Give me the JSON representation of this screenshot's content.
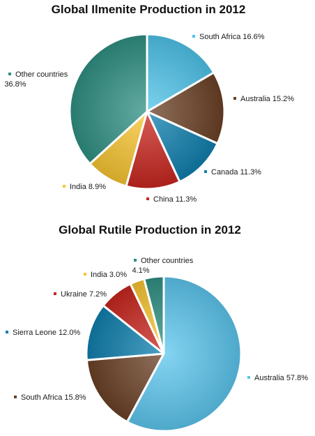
{
  "chart_data": [
    {
      "type": "pie",
      "title": "Global Ilmenite Production in 2012",
      "slices": [
        {
          "label": "South Africa",
          "value": 16.6,
          "text": "South Africa 16.6%",
          "color": "#4fc3ea"
        },
        {
          "label": "Australia",
          "value": 15.2,
          "text": "Australia 15.2%",
          "color": "#6b4126"
        },
        {
          "label": "Canada",
          "value": 11.3,
          "text": "Canada 11.3%",
          "color": "#0f7fae"
        },
        {
          "label": "China",
          "value": 11.3,
          "text": "China 11.3%",
          "color": "#c8261f"
        },
        {
          "label": "India",
          "value": 8.9,
          "text": "India 8.9%",
          "color": "#f7c531"
        },
        {
          "label": "Other countries",
          "value": 36.8,
          "text": "Other countries\n36.8%",
          "color": "#2f8f83"
        }
      ],
      "legend": "none"
    },
    {
      "type": "pie",
      "title": "Global Rutile Production in 2012",
      "slices": [
        {
          "label": "Australia",
          "value": 57.8,
          "text": "Australia 57.8%",
          "color": "#5cc6ee"
        },
        {
          "label": "South Africa",
          "value": 15.8,
          "text": "South Africa 15.8%",
          "color": "#6b4126"
        },
        {
          "label": "Sierra Leone",
          "value": 12.0,
          "text": "Sierra Leone 12.0%",
          "color": "#0f7fae"
        },
        {
          "label": "Ukraine",
          "value": 7.2,
          "text": "Ukraine 7.2%",
          "color": "#c8261f"
        },
        {
          "label": "India",
          "value": 3.0,
          "text": "India 3.0%",
          "color": "#f7c531"
        },
        {
          "label": "Other countries",
          "value": 4.1,
          "text": "Other countries\n4.1%",
          "color": "#2f8f83"
        }
      ],
      "legend": "none"
    }
  ]
}
